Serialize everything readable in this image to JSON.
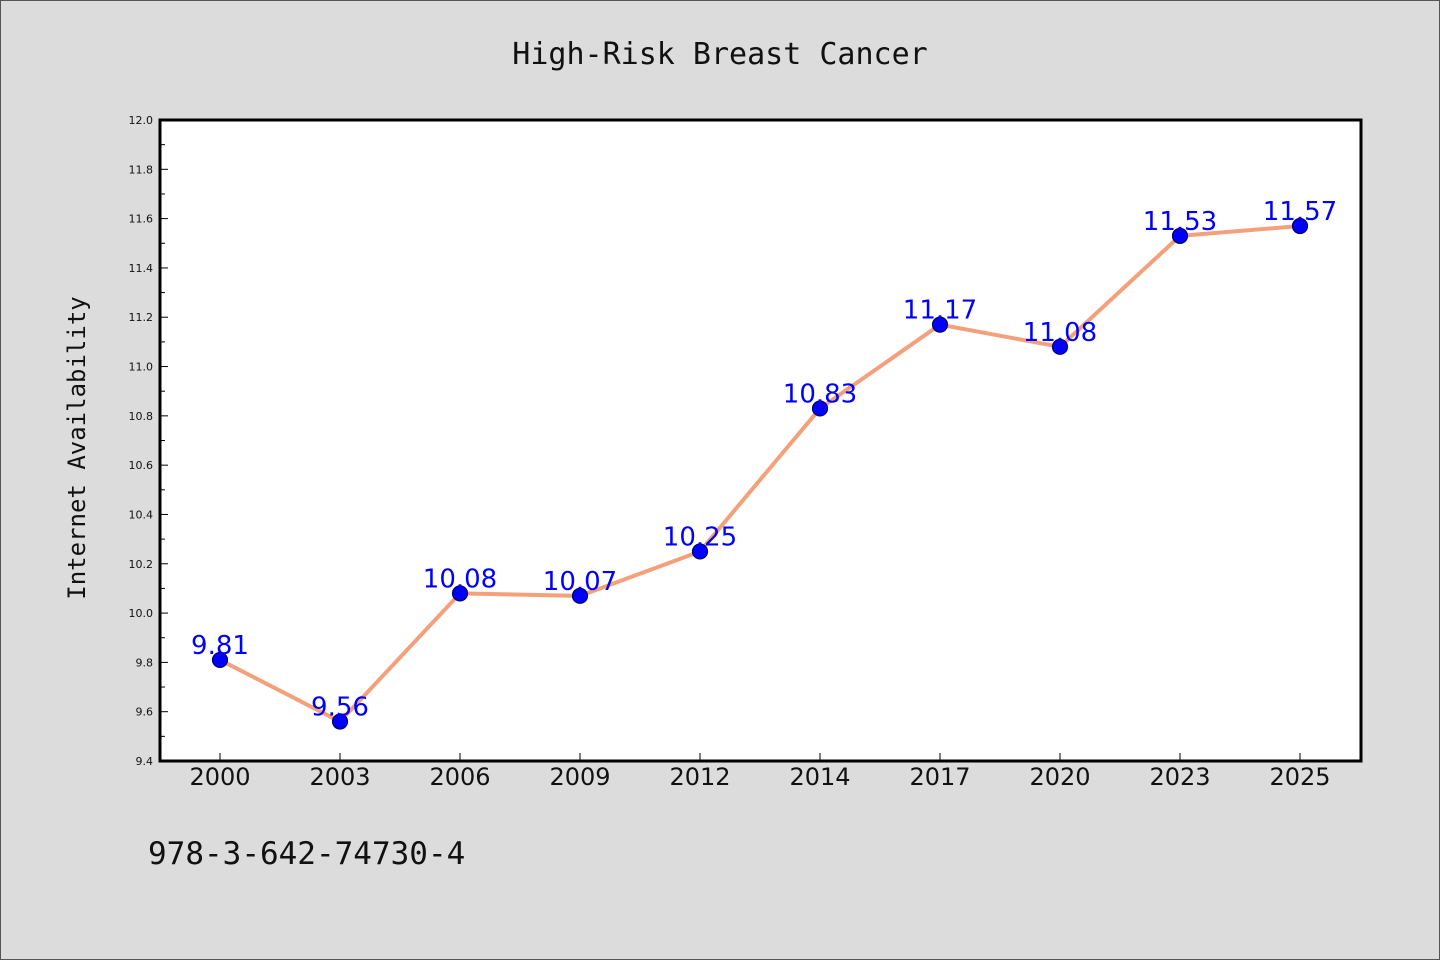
{
  "chart_data": {
    "type": "line",
    "title": "High-Risk Breast Cancer",
    "xlabel": "",
    "ylabel": "Internet Availability",
    "categories": [
      "2000",
      "2003",
      "2006",
      "2009",
      "2012",
      "2014",
      "2017",
      "2020",
      "2023",
      "2025"
    ],
    "series": [
      {
        "values": [
          9.81,
          9.56,
          10.08,
          10.07,
          10.25,
          10.83,
          11.17,
          11.08,
          11.53,
          11.57
        ],
        "data_labels": [
          "9.81",
          "9.56",
          "10.08",
          "10.07",
          "10.25",
          "10.83",
          "11.17",
          "11.08",
          "11.53",
          "11.57"
        ]
      }
    ],
    "ylim": [
      9.4,
      12.0
    ],
    "yticks": [
      "9.4",
      "9.6",
      "9.8",
      "10.0",
      "10.2",
      "10.4",
      "10.6",
      "10.8",
      "11.0",
      "11.2",
      "11.4",
      "11.6",
      "11.8",
      "12.0"
    ],
    "grid": false,
    "legend": "none",
    "colors": {
      "line": "#f4a07a",
      "marker": "#0000ff",
      "marker_edge": "#000066",
      "data_label": "#0000ff",
      "background": "#dcdcdc",
      "plot_background": "#ffffff"
    }
  },
  "footer": {
    "code": "978-3-642-74730-4"
  }
}
